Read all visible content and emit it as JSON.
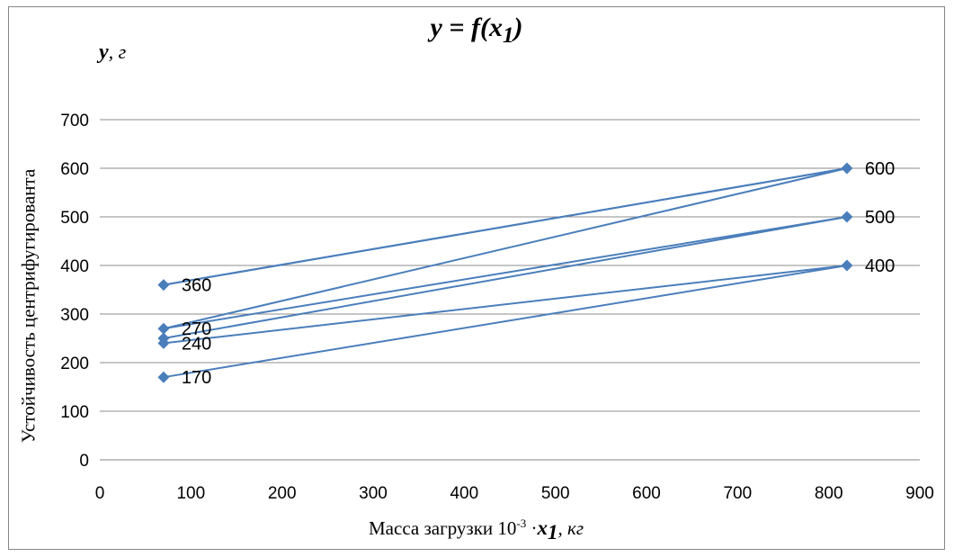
{
  "chart_data": {
    "type": "line",
    "title_base": "y = f(x",
    "title_sub": "1",
    "title_end": ")",
    "ylabel": "Устойчивость центрифугированта",
    "ylabel_var": "y",
    "ylabel_unit": ", г",
    "xlabel_text": "Масса загрузки   10",
    "xlabel_exp": "-3",
    "xlabel_dot": " ·",
    "xlabel_var": "x",
    "xlabel_sub": "1",
    "xlabel_unit": ", кг",
    "xlim": [
      0,
      900
    ],
    "ylim": [
      0,
      700
    ],
    "x_ticks": [
      0,
      100,
      200,
      300,
      400,
      500,
      600,
      700,
      800,
      900
    ],
    "y_ticks": [
      0,
      100,
      200,
      300,
      400,
      500,
      600,
      700
    ],
    "grid": "horizontal",
    "marker": "diamond",
    "color": "#4a7ebb",
    "x": [
      70,
      820
    ],
    "series": [
      {
        "values": [
          360,
          600
        ]
      },
      {
        "values": [
          360,
          600
        ]
      },
      {
        "values": [
          270,
          600
        ]
      },
      {
        "values": [
          270,
          500
        ]
      },
      {
        "values": [
          250,
          500
        ]
      },
      {
        "values": [
          240,
          400
        ]
      },
      {
        "values": [
          170,
          400
        ]
      }
    ],
    "data_labels": [
      {
        "x": 70,
        "y": 360,
        "text": "360"
      },
      {
        "x": 70,
        "y": 270,
        "text": "270"
      },
      {
        "x": 70,
        "y": 240,
        "text": "240"
      },
      {
        "x": 70,
        "y": 170,
        "text": "170"
      },
      {
        "x": 820,
        "y": 600,
        "text": "600"
      },
      {
        "x": 820,
        "y": 500,
        "text": "500"
      },
      {
        "x": 820,
        "y": 400,
        "text": "400"
      }
    ]
  }
}
